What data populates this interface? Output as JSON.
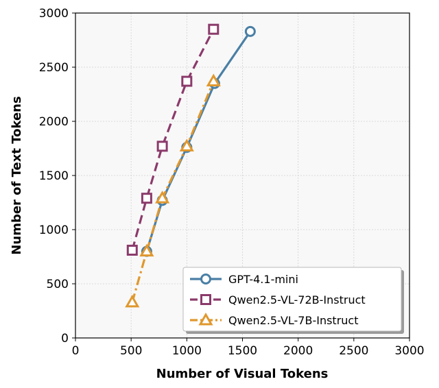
{
  "chart_data": {
    "type": "line",
    "title": "",
    "xlabel": "Number of Visual Tokens",
    "ylabel": "Number of Text Tokens",
    "xlim": [
      0,
      3000
    ],
    "ylim": [
      0,
      3000
    ],
    "xticks": [
      0,
      500,
      1000,
      1500,
      2000,
      2500,
      3000
    ],
    "yticks": [
      0,
      500,
      1000,
      1500,
      2000,
      2500,
      3000
    ],
    "grid": true,
    "legend_position": "bottom-right",
    "series": [
      {
        "name": "GPT-4.1-mini",
        "color": "#4a7fa5",
        "marker": "circle",
        "line_style": "solid",
        "x": [
          640,
          780,
          1000,
          1250,
          1570
        ],
        "y": [
          800,
          1270,
          1760,
          2350,
          2830
        ]
      },
      {
        "name": "Qwen2.5-VL-72B-Instruct",
        "color": "#8b3a6b",
        "marker": "square",
        "line_style": "dashed",
        "x": [
          510,
          640,
          780,
          1000,
          1240
        ],
        "y": [
          810,
          1290,
          1770,
          2370,
          2850
        ]
      },
      {
        "name": "Qwen2.5-VL-7B-Instruct",
        "color": "#e0982e",
        "marker": "triangle",
        "line_style": "dashdot",
        "x": [
          510,
          640,
          780,
          1000,
          1240
        ],
        "y": [
          330,
          800,
          1290,
          1770,
          2370
        ]
      }
    ]
  }
}
